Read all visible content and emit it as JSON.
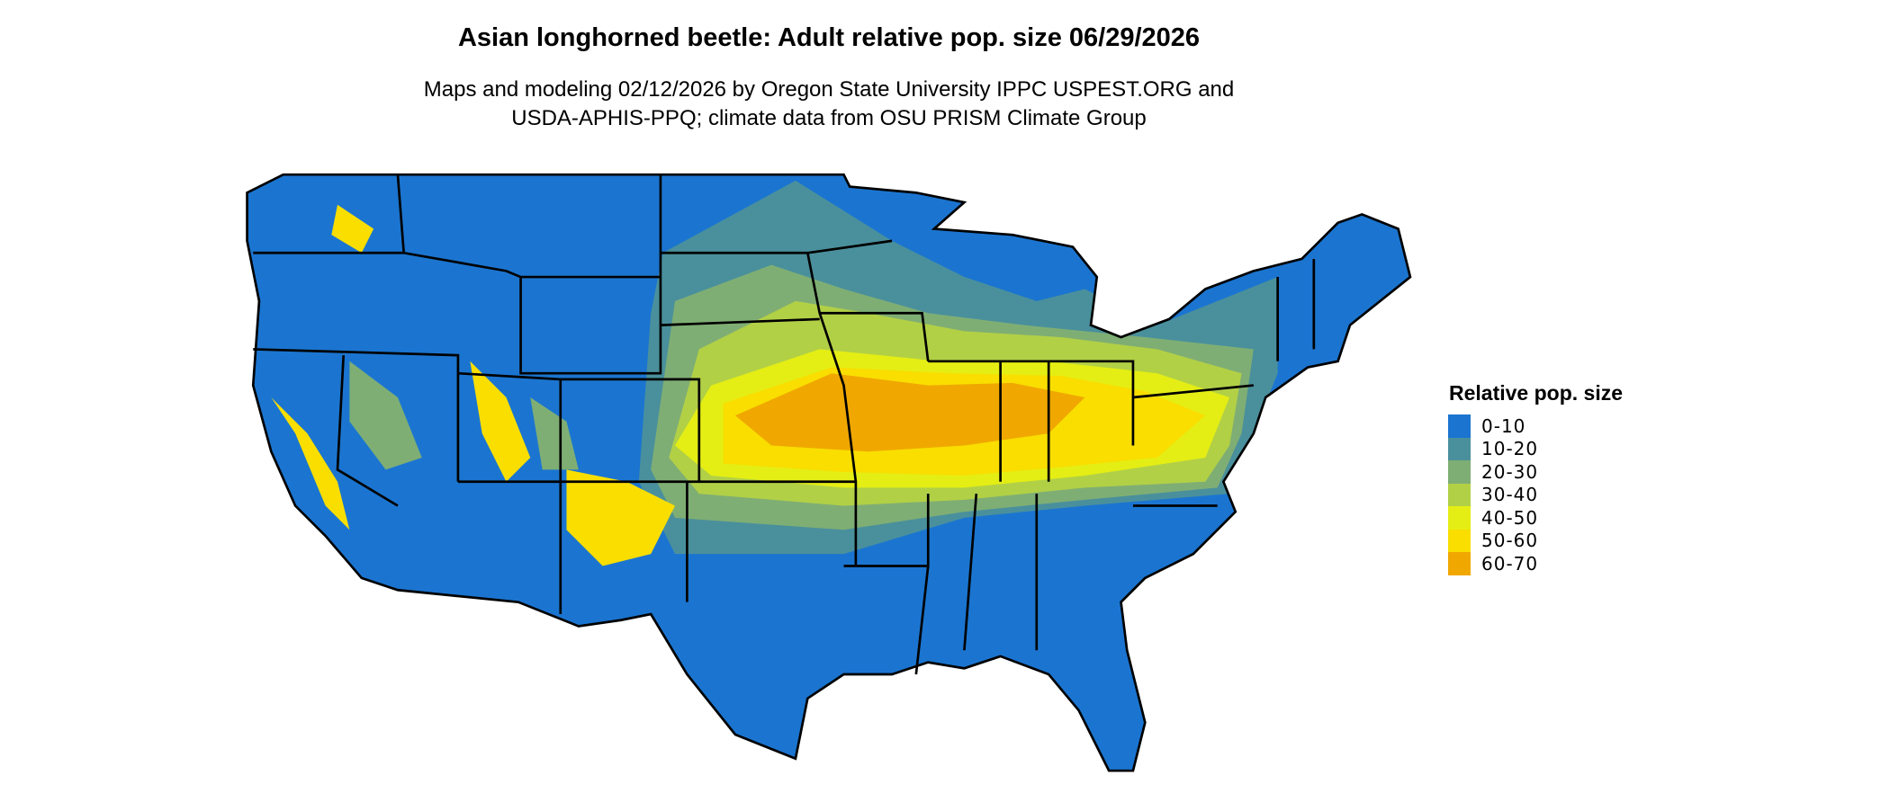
{
  "title": "Asian longhorned beetle: Adult relative pop. size 06/29/2026",
  "subtitle_lines": [
    "Maps and modeling 02/12/2026 by Oregon State University IPPC USPEST.ORG and",
    "USDA-APHIS-PPQ; climate data from OSU PRISM Climate Group"
  ],
  "legend": {
    "title": "Relative pop. size",
    "items": [
      {
        "label": "0-10",
        "color": "#1b75d0"
      },
      {
        "label": "10-20",
        "color": "#4a909c"
      },
      {
        "label": "20-30",
        "color": "#7fae74"
      },
      {
        "label": "30-40",
        "color": "#b2d046"
      },
      {
        "label": "40-50",
        "color": "#e4ee14"
      },
      {
        "label": "50-60",
        "color": "#f9de00"
      },
      {
        "label": "60-70",
        "color": "#f0a800"
      }
    ]
  }
}
